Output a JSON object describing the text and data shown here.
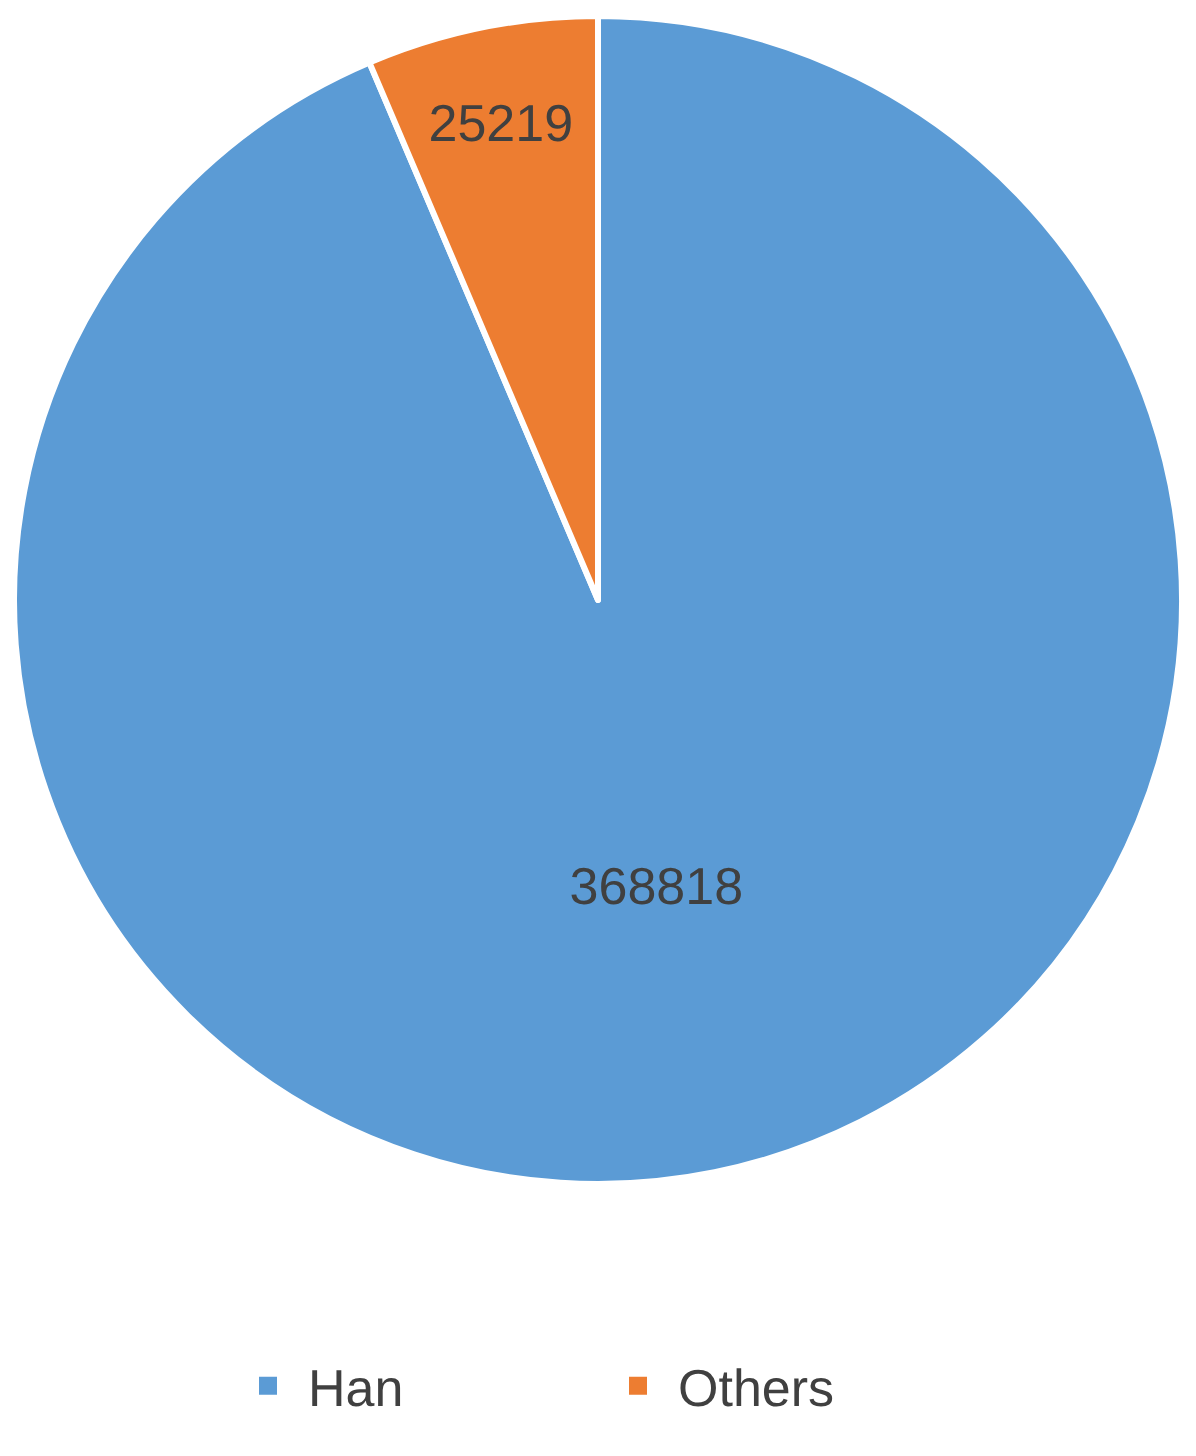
{
  "chart_data": {
    "type": "pie",
    "categories": [
      "Han",
      "Others"
    ],
    "values": [
      368818,
      25219
    ],
    "colors": [
      "#5b9bd5",
      "#ed7d31"
    ],
    "data_labels": true,
    "legend": "bottom"
  }
}
